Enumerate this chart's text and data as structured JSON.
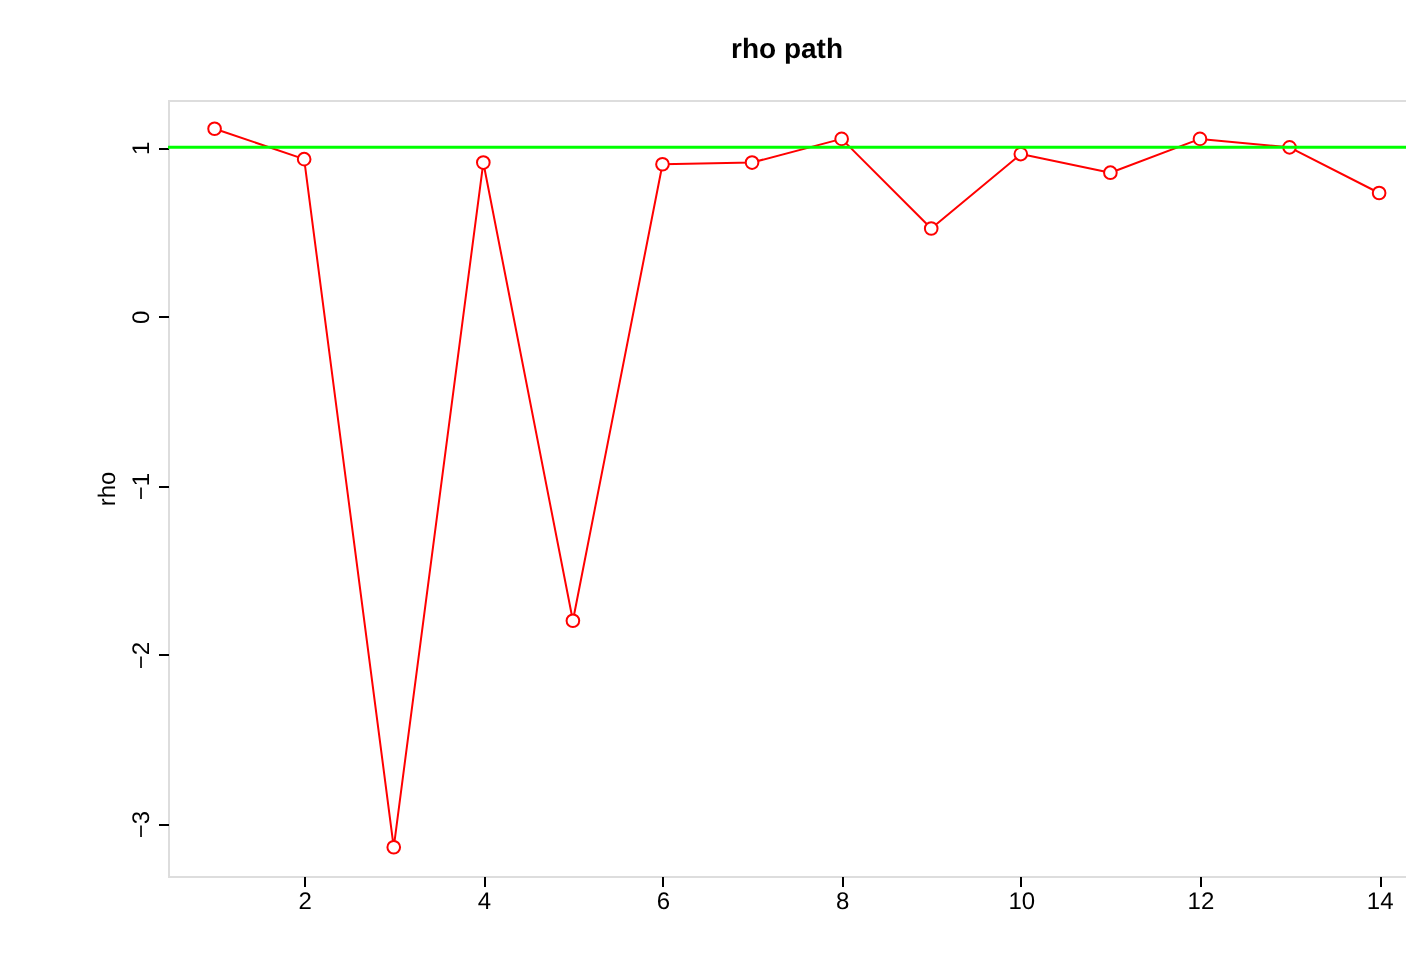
{
  "chart_data": {
    "type": "line",
    "title": "rho path",
    "ylabel": "rho",
    "x": [
      1,
      2,
      3,
      4,
      5,
      6,
      7,
      8,
      9,
      10,
      11,
      12,
      13,
      14
    ],
    "series": [
      {
        "color": "#ff0000",
        "values": [
          1.11,
          0.93,
          -3.14,
          0.91,
          -1.8,
          0.9,
          0.91,
          1.05,
          0.52,
          0.96,
          0.85,
          1.05,
          1.0,
          0.73
        ]
      }
    ],
    "xlim": [
      0.48,
      14.3
    ],
    "ylim": [
      -3.31,
      1.28
    ],
    "xticks": [
      2,
      4,
      6,
      8,
      10,
      12,
      14
    ],
    "yticks": [
      -3,
      -2,
      -1,
      0,
      1
    ],
    "ref_lines": [
      {
        "axis": "y",
        "value": 1,
        "color": "#00ff00"
      }
    ],
    "marker": "circle",
    "line_style": "solid",
    "grid": false
  }
}
